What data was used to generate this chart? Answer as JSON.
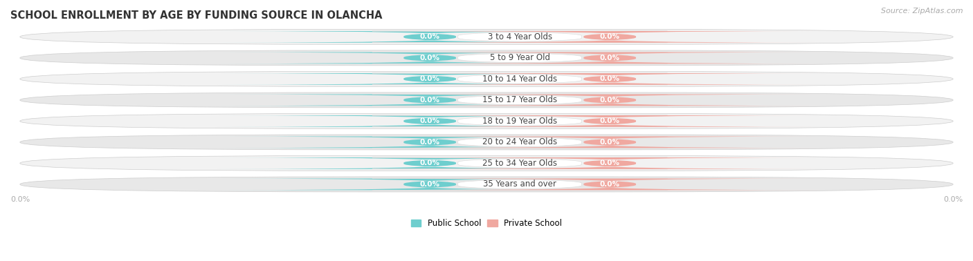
{
  "title": "SCHOOL ENROLLMENT BY AGE BY FUNDING SOURCE IN OLANCHA",
  "source": "Source: ZipAtlas.com",
  "categories": [
    "3 to 4 Year Olds",
    "5 to 9 Year Old",
    "10 to 14 Year Olds",
    "15 to 17 Year Olds",
    "18 to 19 Year Olds",
    "20 to 24 Year Olds",
    "25 to 34 Year Olds",
    "35 Years and over"
  ],
  "public_values": [
    0.0,
    0.0,
    0.0,
    0.0,
    0.0,
    0.0,
    0.0,
    0.0
  ],
  "private_values": [
    0.0,
    0.0,
    0.0,
    0.0,
    0.0,
    0.0,
    0.0,
    0.0
  ],
  "public_color": "#6ecece",
  "private_color": "#f0a8a0",
  "row_bg_light": "#f2f2f2",
  "row_bg_dark": "#e8e8e8",
  "label_color": "#ffffff",
  "category_color": "#444444",
  "axis_label_color": "#aaaaaa",
  "title_color": "#333333",
  "source_color": "#aaaaaa",
  "title_fontsize": 10.5,
  "label_fontsize": 7.5,
  "category_fontsize": 8.5,
  "legend_fontsize": 8.5,
  "axis_fontsize": 8
}
